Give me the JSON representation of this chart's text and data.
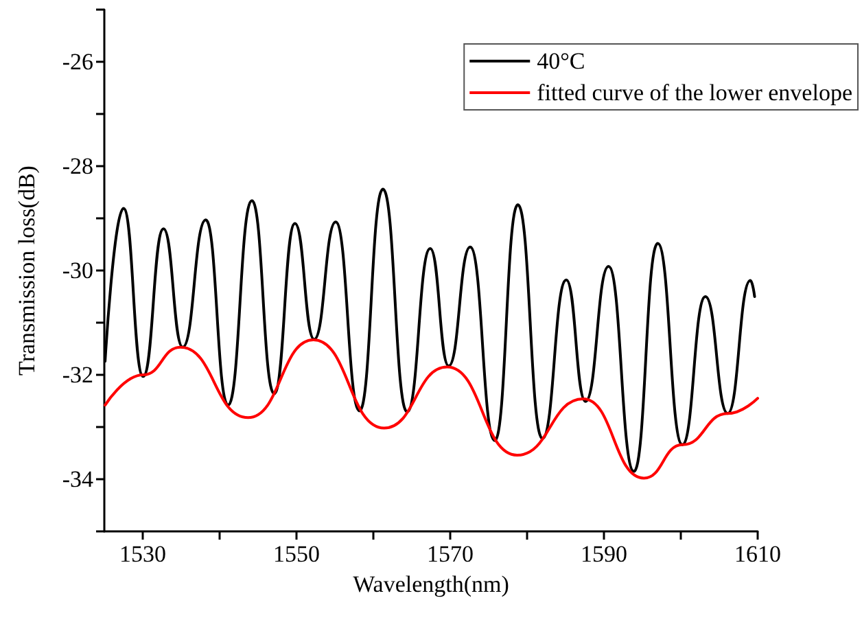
{
  "chart_data": {
    "type": "line",
    "xlabel": "Wavelength(nm)",
    "ylabel": "Transmission loss(dB)",
    "xlim": [
      1525,
      1610
    ],
    "ylim": [
      -35,
      -25
    ],
    "xticks": [
      {
        "value": 1530,
        "label": "1530"
      },
      {
        "value": 1540,
        "label": null
      },
      {
        "value": 1550,
        "label": "1550"
      },
      {
        "value": 1560,
        "label": null
      },
      {
        "value": 1570,
        "label": "1570"
      },
      {
        "value": 1580,
        "label": null
      },
      {
        "value": 1590,
        "label": "1590"
      },
      {
        "value": 1600,
        "label": null
      },
      {
        "value": 1610,
        "label": "1610"
      }
    ],
    "yticks": [
      {
        "value": -35,
        "label": null
      },
      {
        "value": -34,
        "label": "-34"
      },
      {
        "value": -33,
        "label": null
      },
      {
        "value": -32,
        "label": "-32"
      },
      {
        "value": -31,
        "label": null
      },
      {
        "value": -30,
        "label": "-30"
      },
      {
        "value": -29,
        "label": null
      },
      {
        "value": -28,
        "label": "-28"
      },
      {
        "value": -27,
        "label": null
      },
      {
        "value": -26,
        "label": "-26"
      },
      {
        "value": -25,
        "label": null
      }
    ],
    "legend": "top right",
    "grid": false,
    "series": [
      {
        "name": "40°C",
        "color": "#000000",
        "x": [
          1525.1,
          1527.5,
          1530.05,
          1532.7,
          1535.2,
          1538.2,
          1541.1,
          1544.2,
          1547.1,
          1549.8,
          1552.3,
          1555.1,
          1558.2,
          1561.25,
          1564.4,
          1567.4,
          1569.8,
          1572.6,
          1575.8,
          1578.8,
          1582.0,
          1585.1,
          1587.6,
          1590.6,
          1593.9,
          1597.0,
          1600.2,
          1603.2,
          1606.1,
          1609.05,
          1609.6
        ],
        "values": [
          -31.74,
          -28.81,
          -32.03,
          -29.2,
          -31.47,
          -29.03,
          -32.58,
          -28.66,
          -32.36,
          -29.1,
          -31.32,
          -29.07,
          -32.69,
          -28.44,
          -32.71,
          -29.58,
          -31.83,
          -29.55,
          -33.26,
          -28.74,
          -33.22,
          -30.18,
          -32.51,
          -29.92,
          -33.85,
          -29.48,
          -33.34,
          -30.5,
          -32.74,
          -30.19,
          -30.5
        ]
      },
      {
        "name": "fitted curve of the lower envelope",
        "color": "#ff0000",
        "x": [
          1525.1,
          1530.05,
          1534.9,
          1543.7,
          1552.2,
          1561.4,
          1569.6,
          1578.7,
          1587.3,
          1595.2,
          1600.2,
          1606.1,
          1610
        ],
        "values": [
          -32.58,
          -32.0,
          -31.47,
          -32.82,
          -31.33,
          -33.02,
          -31.85,
          -33.54,
          -32.46,
          -33.98,
          -33.34,
          -32.74,
          -32.45
        ]
      }
    ]
  }
}
